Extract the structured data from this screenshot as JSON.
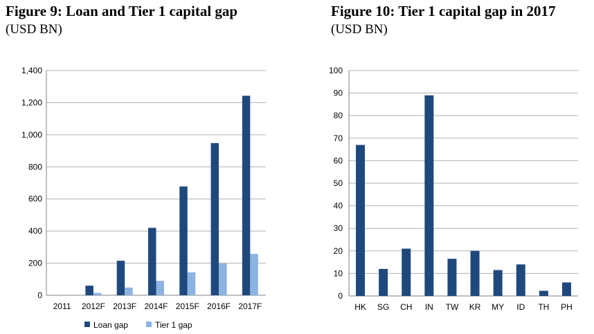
{
  "figures": [
    {
      "title": "Figure 9: Loan and Tier 1 capital gap",
      "subtitle": "(USD BN)"
    },
    {
      "title": "Figure 10: Tier 1 capital gap in 2017",
      "subtitle": "(USD BN)"
    }
  ],
  "colors": {
    "dark_blue": "#1f497d",
    "light_blue": "#8db3e2",
    "grid": "#b0b0b0"
  },
  "chart_data": [
    {
      "type": "bar",
      "categories": [
        "2011",
        "2012F",
        "2013F",
        "2014F",
        "2015F",
        "2016F",
        "2017F"
      ],
      "series": [
        {
          "name": "Loan gap",
          "values": [
            0,
            60,
            215,
            420,
            678,
            948,
            1243
          ]
        },
        {
          "name": "Tier 1 gap",
          "values": [
            0,
            15,
            48,
            90,
            143,
            198,
            258
          ]
        }
      ],
      "ylim": [
        0,
        1400
      ],
      "yticks": [
        0,
        200,
        400,
        600,
        800,
        1000,
        1200,
        1400
      ],
      "ytick_labels": [
        "0",
        "200",
        "400",
        "600",
        "800",
        "1,000",
        "1,200",
        "1,400"
      ],
      "grid": true,
      "legend": "bottom"
    },
    {
      "type": "bar",
      "categories": [
        "HK",
        "SG",
        "CH",
        "IN",
        "TW",
        "KR",
        "MY",
        "ID",
        "TH",
        "PH"
      ],
      "values": [
        67,
        12,
        21,
        89,
        16.5,
        20,
        11.5,
        14,
        2.3,
        6
      ],
      "ylim": [
        0,
        100
      ],
      "yticks": [
        0,
        10,
        20,
        30,
        40,
        50,
        60,
        70,
        80,
        90,
        100
      ],
      "ytick_labels": [
        "0",
        "10",
        "20",
        "30",
        "40",
        "50",
        "60",
        "70",
        "80",
        "90",
        "100"
      ],
      "grid": true
    }
  ]
}
